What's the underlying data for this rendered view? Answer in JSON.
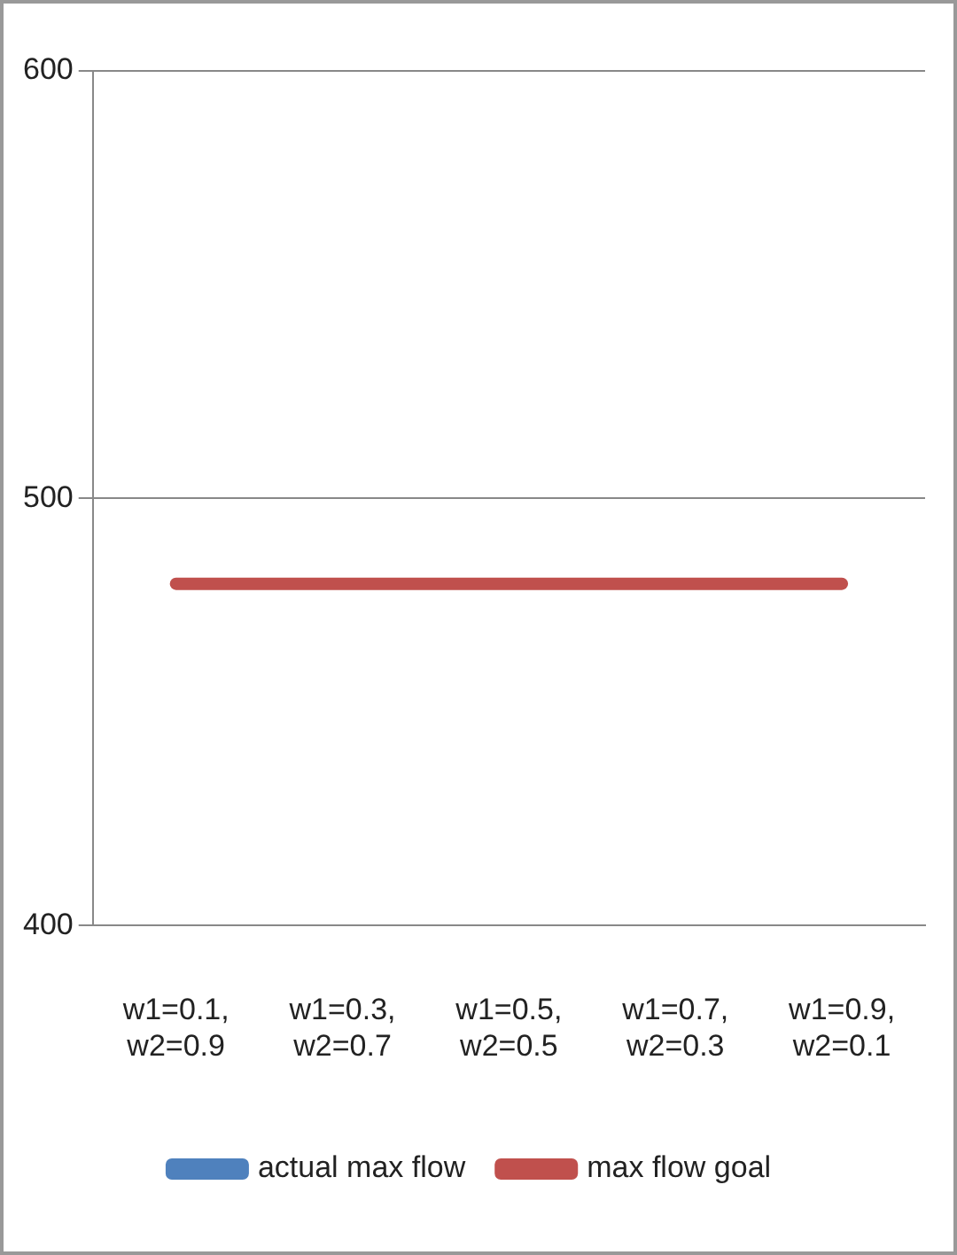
{
  "chart_data": {
    "type": "line",
    "categories": [
      "w1=0.1, w2=0.9",
      "w1=0.3, w2=0.7",
      "w1=0.5, w2=0.5",
      "w1=0.7, w2=0.3",
      "w1=0.9, w2=0.1"
    ],
    "series": [
      {
        "name": "actual max flow",
        "color": "#4f81bd",
        "values": [
          null,
          null,
          null,
          null,
          null
        ]
      },
      {
        "name": "max flow goal",
        "color": "#c0504d",
        "values": [
          480,
          480,
          480,
          480,
          480
        ]
      }
    ],
    "ylim": [
      400,
      600
    ],
    "yticks": [
      400,
      500,
      600
    ],
    "grid": "y",
    "legend": "bottom",
    "marker": "none",
    "line_style": "solid"
  }
}
